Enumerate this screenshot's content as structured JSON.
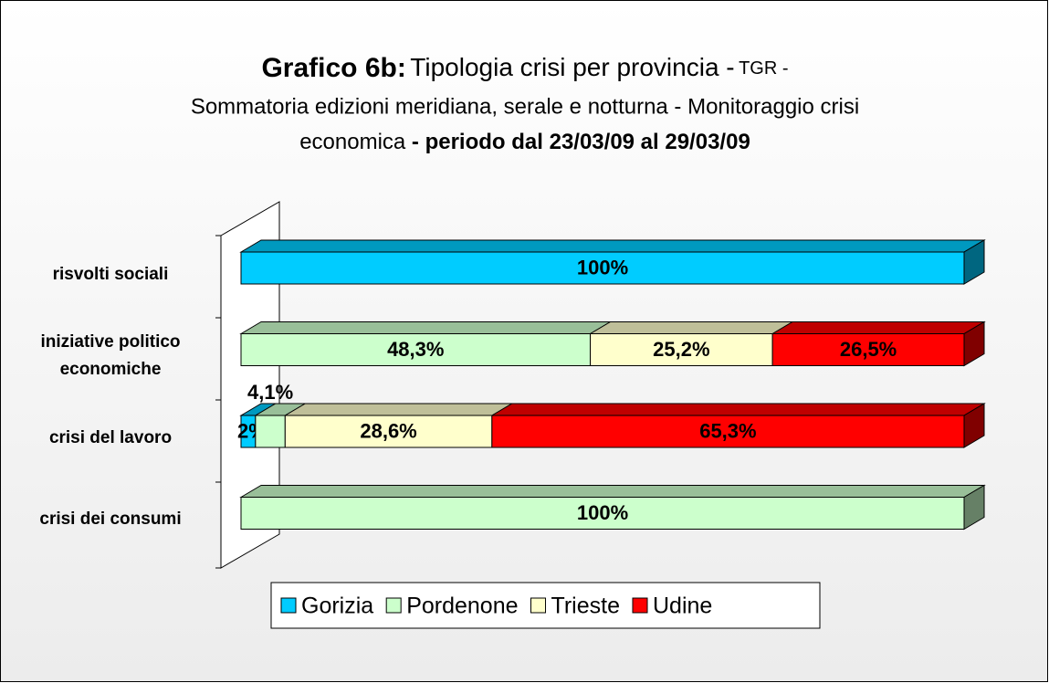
{
  "chart_data": {
    "type": "stacked_barh",
    "title": {
      "lead": "Grafico 6b:",
      "main": "Tipologia crisi per provincia -",
      "tag": "TGR -",
      "line2": "Sommatoria edizioni meridiana, serale e notturna - Monitoraggio crisi",
      "line3": "economica",
      "period": "- periodo dal 23/03/09 al 29/03/09"
    },
    "categories": [
      "risvolti sociali",
      "iniziative politico economiche",
      "crisi del lavoro",
      "crisi dei consumi"
    ],
    "series": [
      {
        "name": "Gorizia",
        "color": "#00ccff",
        "values": [
          100,
          null,
          2,
          null
        ],
        "value_labels": [
          "100%",
          null,
          "2%",
          null
        ]
      },
      {
        "name": "Pordenone",
        "color": "#ccffcc",
        "values": [
          null,
          48.3,
          4.1,
          100
        ],
        "value_labels": [
          null,
          "48,3%",
          "4,1%",
          "100%"
        ]
      },
      {
        "name": "Trieste",
        "color": "#ffffcc",
        "values": [
          null,
          25.2,
          28.6,
          null
        ],
        "value_labels": [
          null,
          "25,2%",
          "28,6%",
          null
        ]
      },
      {
        "name": "Udine",
        "color": "#ff0000",
        "values": [
          null,
          26.5,
          65.3,
          null
        ],
        "value_labels": [
          null,
          "26,5%",
          "65,3%",
          null
        ]
      }
    ],
    "xlim": [
      0,
      100
    ],
    "legend": "bottom"
  }
}
